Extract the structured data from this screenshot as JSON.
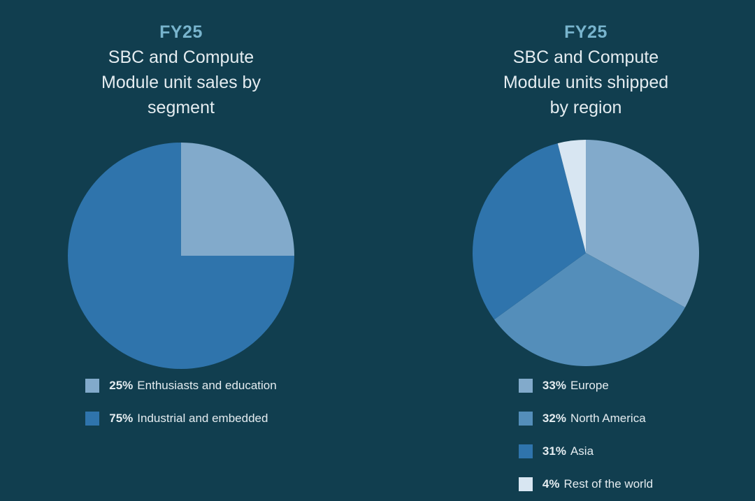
{
  "theme": {
    "background": "#113E4F",
    "fy_title_color": "#78B4CD",
    "text_color": "#E4ECF0"
  },
  "charts": [
    {
      "fy": "FY25",
      "subtitle_lines": [
        "SBC and Compute",
        "Module unit sales by",
        "segment"
      ],
      "legend": [
        {
          "pct": "25%",
          "label": "Enthusiasts and education"
        },
        {
          "pct": "75%",
          "label": "Industrial and embedded"
        }
      ]
    },
    {
      "fy": "FY25",
      "subtitle_lines": [
        "SBC and Compute",
        "Module units shipped",
        "by region"
      ],
      "legend": [
        {
          "pct": "33%",
          "label": "Europe"
        },
        {
          "pct": "32%",
          "label": "North America"
        },
        {
          "pct": "31%",
          "label": "Asia"
        },
        {
          "pct": "4%",
          "label": "Rest of the world"
        }
      ]
    }
  ],
  "chart_data": [
    {
      "type": "pie",
      "title": "FY25 SBC and Compute Module unit sales by segment",
      "labels": [
        "Enthusiasts and education",
        "Industrial and embedded"
      ],
      "values": [
        25,
        75
      ],
      "colors": [
        "#82AACB",
        "#2F74AC"
      ],
      "start_angle_deg": 0,
      "direction": "clockwise",
      "legend_position": "bottom"
    },
    {
      "type": "pie",
      "title": "FY25 SBC and Compute Module units shipped by region",
      "labels": [
        "Europe",
        "North America",
        "Asia",
        "Rest of the world"
      ],
      "values": [
        33,
        32,
        31,
        4
      ],
      "colors": [
        "#82AACB",
        "#548EBA",
        "#2F74AC",
        "#D8E6F2"
      ],
      "start_angle_deg": 0,
      "direction": "clockwise",
      "legend_position": "bottom"
    }
  ]
}
